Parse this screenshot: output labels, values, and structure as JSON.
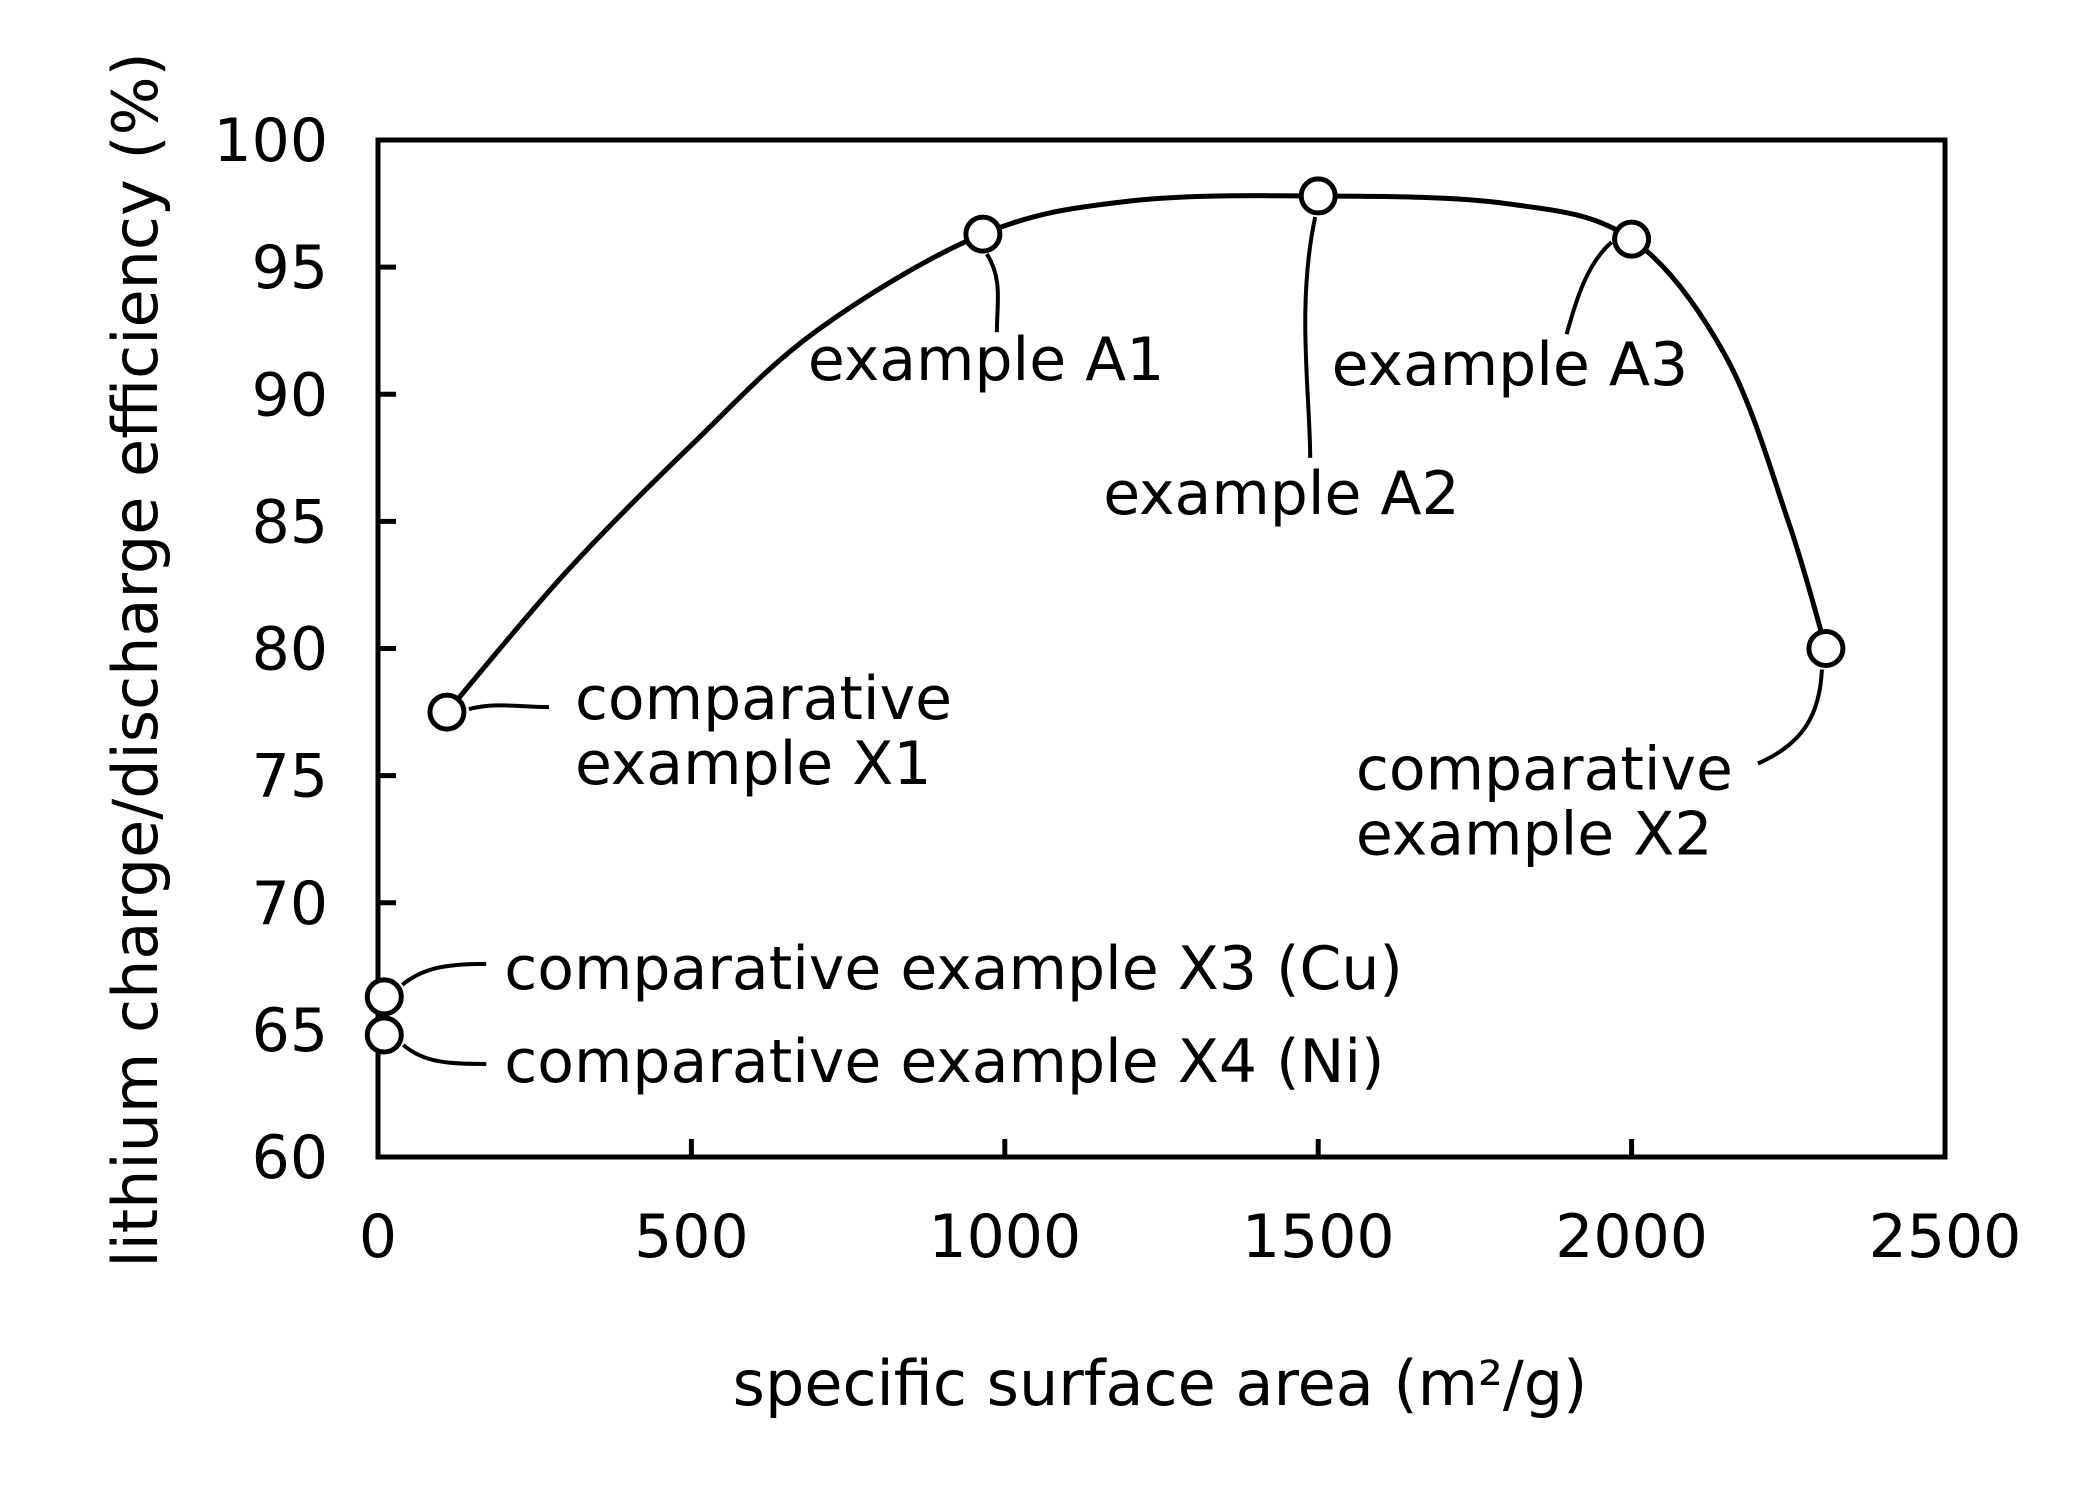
{
  "chart_data": {
    "type": "scatter",
    "xlabel": "specific surface area (m²/g)",
    "ylabel": "lithium charge/discharge efficiency (%)",
    "xlim": [
      0,
      2500
    ],
    "ylim": [
      60,
      100
    ],
    "x_ticks": [
      "0",
      "500",
      "1000",
      "1500",
      "2000",
      "2500"
    ],
    "y_ticks": [
      "60",
      "65",
      "70",
      "75",
      "80",
      "85",
      "90",
      "95",
      "100"
    ],
    "grid": false,
    "legend": "none",
    "points": [
      {
        "x": 110,
        "y": 77.5,
        "label_lines": [
          "comparative",
          "example X1"
        ]
      },
      {
        "x": 965,
        "y": 96.3,
        "label_lines": [
          "example A1"
        ]
      },
      {
        "x": 1500,
        "y": 97.8,
        "label_lines": [
          "example A2"
        ]
      },
      {
        "x": 2000,
        "y": 96.1,
        "label_lines": [
          "example A3"
        ]
      },
      {
        "x": 2310,
        "y": 80.0,
        "label_lines": [
          "comparative",
          "example X2"
        ]
      },
      {
        "x": 10,
        "y": 66.3,
        "label_lines": [
          "comparative example X3 (Cu)"
        ]
      },
      {
        "x": 10,
        "y": 64.8,
        "label_lines": [
          "comparative example X4 (Ni)"
        ]
      }
    ],
    "curve": {
      "through": [
        [
          110,
          77.5
        ],
        [
          300,
          83.0
        ],
        [
          500,
          88.0
        ],
        [
          700,
          92.5
        ],
        [
          965,
          96.3
        ],
        [
          1200,
          97.6
        ],
        [
          1500,
          97.8
        ],
        [
          1800,
          97.5
        ],
        [
          2000,
          96.1
        ],
        [
          2150,
          91.5
        ],
        [
          2250,
          85.0
        ],
        [
          2310,
          80.0
        ]
      ]
    }
  }
}
